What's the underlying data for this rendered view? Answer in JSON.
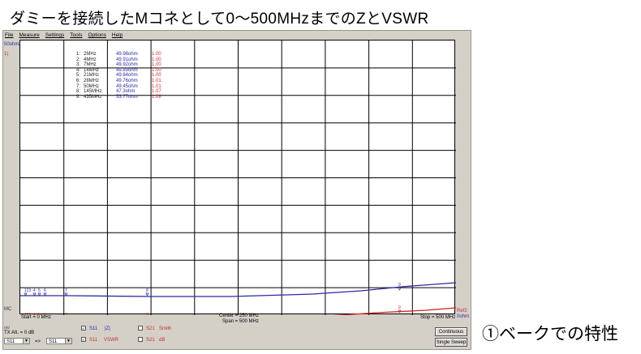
{
  "page_title": "ダミーを接続したMコネとして0～500MHzまでのZとVSWR",
  "caption": "①ベークでの特性",
  "menu": [
    "File",
    "Measure",
    "Settings",
    "Tools",
    "Options",
    "Help"
  ],
  "plot": {
    "top_left_label": "50ohm/",
    "top_left_sub": "1)",
    "left_bottom_label": "MC",
    "right_bottom_label": "Ref2",
    "right_bottom_label2": "0ohm",
    "start": "Start = 0 MHz",
    "center": "Center = 250 MHz",
    "span": "Span = 500 MHz",
    "stop": "Stop = 500 MHz"
  },
  "markers": [
    {
      "n": "1:",
      "f": "2MHz",
      "z": "49.98ohm",
      "v": "1.00"
    },
    {
      "n": "2:",
      "f": "4MHz",
      "z": "49.91ohm",
      "v": "1.00"
    },
    {
      "n": "3:",
      "f": "7MHz",
      "z": "49.92ohm",
      "v": "1.00"
    },
    {
      "n": "4:",
      "f": "14MHz",
      "z": "49.89ohm",
      "v": "1.00"
    },
    {
      "n": "5:",
      "f": "21MHz",
      "z": "49.84ohm",
      "v": "1.00"
    },
    {
      "n": "6:",
      "f": "28MHz",
      "z": "49.76ohm",
      "v": "1.01"
    },
    {
      "n": "7:",
      "f": "50MHz",
      "z": "49.45ohm",
      "v": "1.01"
    },
    {
      "n": "8:",
      "f": "145MHz",
      "z": "47.3ohm",
      "v": "1.07"
    },
    {
      "n": "9:",
      "f": "435MHz",
      "z": "53.77ohm",
      "v": "1.08"
    }
  ],
  "trace_marker_labels": {
    "group_a": "123",
    "m4": "4",
    "m5": "5",
    "m6": "6",
    "m7": "7",
    "m8": "8",
    "m9": "9"
  },
  "controls": {
    "tx_label": "TX Att. = 0 dB",
    "tx_prefix": "on/",
    "select1": "S11",
    "arrow": "=>",
    "select2": "S11",
    "s11_z": "S11",
    "s11_z_param": "|Z|",
    "s21_smith": "S21",
    "s21_smith_param": "Smith",
    "s11_vswr": "S11",
    "s11_vswr_param": "VSWR",
    "s21_db": "S21",
    "s21_db_param": "dB",
    "continuous": "Continuous",
    "single_sweep": "Single Sweep"
  },
  "colors": {
    "blue_trace": "#2a2aa0",
    "red_trace": "#d02020",
    "grid": "#000000"
  }
}
